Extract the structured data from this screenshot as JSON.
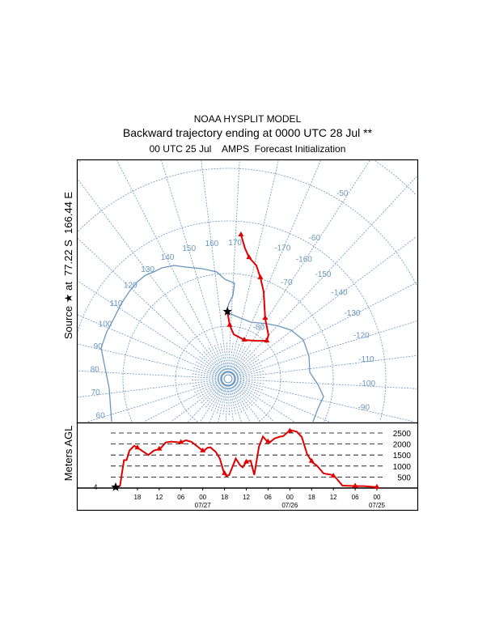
{
  "header": {
    "model": "NOAA HYSPLIT MODEL",
    "title": "Backward trajectory ending at 0000 UTC 28 Jul **",
    "subtitle": "00 UTC 25 Jul    AMPS  Forecast Initialization"
  },
  "source_label": "Source ★ at  77.22 S  166.44 E",
  "colors": {
    "trajectory": "#e00000",
    "map": "#6a96c0"
  },
  "chart_data": [
    {
      "type": "map",
      "projection": "south-polar-stereographic",
      "source": {
        "lat": -77.22,
        "lon": 166.44
      },
      "latitude_labels": [
        "-50",
        "-60",
        "-70",
        "-80"
      ],
      "longitude_labels_east": [
        "60",
        "70",
        "80",
        "90",
        "100",
        "110",
        "120",
        "130",
        "140",
        "150",
        "160",
        "170"
      ],
      "longitude_labels_west": [
        "-170",
        "-160",
        "-150",
        "-140",
        "-130",
        "-120",
        "-110",
        "-100",
        "-90"
      ],
      "trajectory": [
        {
          "lat": -77.22,
          "lon": 166.44
        },
        {
          "lat": -79.8,
          "lon": 168.7
        },
        {
          "lat": -81.5,
          "lon": 174.3
        },
        {
          "lat": -82.0,
          "lon": -170.4
        },
        {
          "lat": -81.0,
          "lon": -156.3
        },
        {
          "lat": -79.7,
          "lon": -147.4
        },
        {
          "lat": -78.7,
          "lon": -150.2
        },
        {
          "lat": -76.5,
          "lon": -161.5
        },
        {
          "lat": -72.1,
          "lon": -170.8
        },
        {
          "lat": -69.8,
          "lon": -175.3
        },
        {
          "lat": -67.8,
          "lon": -179.0
        },
        {
          "lat": -66.6,
          "lon": 176.8
        },
        {
          "lat": -65.0,
          "lon": 174.4
        },
        {
          "lat": -62.5,
          "lon": 172.1
        }
      ]
    },
    {
      "type": "line",
      "ylabel": "Meters AGL",
      "start_height_label": "4",
      "yticks": [
        "2500",
        "2000",
        "1500",
        "1000",
        "500"
      ],
      "ytick_values": [
        2500,
        2000,
        1500,
        1000,
        500
      ],
      "xticks": [
        "18",
        "12",
        "06",
        "00",
        "18",
        "12",
        "06",
        "00",
        "18",
        "12",
        "06",
        "00"
      ],
      "xtick_hours": [
        6,
        12,
        18,
        24,
        30,
        36,
        42,
        48,
        54,
        60,
        66,
        72
      ],
      "date_labels": [
        {
          "hour": 24,
          "text": "07/27"
        },
        {
          "hour": 48,
          "text": "07/26"
        },
        {
          "hour": 72,
          "text": "07/25"
        }
      ],
      "hours_back": [
        0,
        1.2,
        2.3,
        3.0,
        3.8,
        5.1,
        6.4,
        9.0,
        10.5,
        12.3,
        13.8,
        15.3,
        17.9,
        19.4,
        20.9,
        24.2,
        25.3,
        26.1,
        27.6,
        28.7,
        29.8,
        30.5,
        31.3,
        33.1,
        34.3,
        35.0,
        36.1,
        37.2,
        38.2,
        39.5,
        40.6,
        41.7,
        42.4,
        43.9,
        45.4,
        46.1,
        47.6,
        48.4,
        49.9,
        51.3,
        52.8,
        54.3,
        55.4,
        57.3,
        59.5,
        60.6,
        62.5,
        66.2,
        68.4,
        72
      ],
      "height_m": [
        4,
        100,
        1270,
        1270,
        1700,
        1920,
        1790,
        1500,
        1700,
        1790,
        2070,
        2110,
        2070,
        2170,
        2100,
        1670,
        1830,
        1850,
        1640,
        1340,
        720,
        540,
        600,
        1340,
        1030,
        940,
        1210,
        1240,
        600,
        1890,
        2340,
        2130,
        2070,
        2260,
        2340,
        2350,
        2560,
        2620,
        2560,
        2320,
        1520,
        1150,
        1030,
        660,
        600,
        480,
        110,
        90,
        90,
        40
      ],
      "ylim": [
        0,
        2700
      ],
      "xlim": [
        0,
        72
      ]
    }
  ]
}
